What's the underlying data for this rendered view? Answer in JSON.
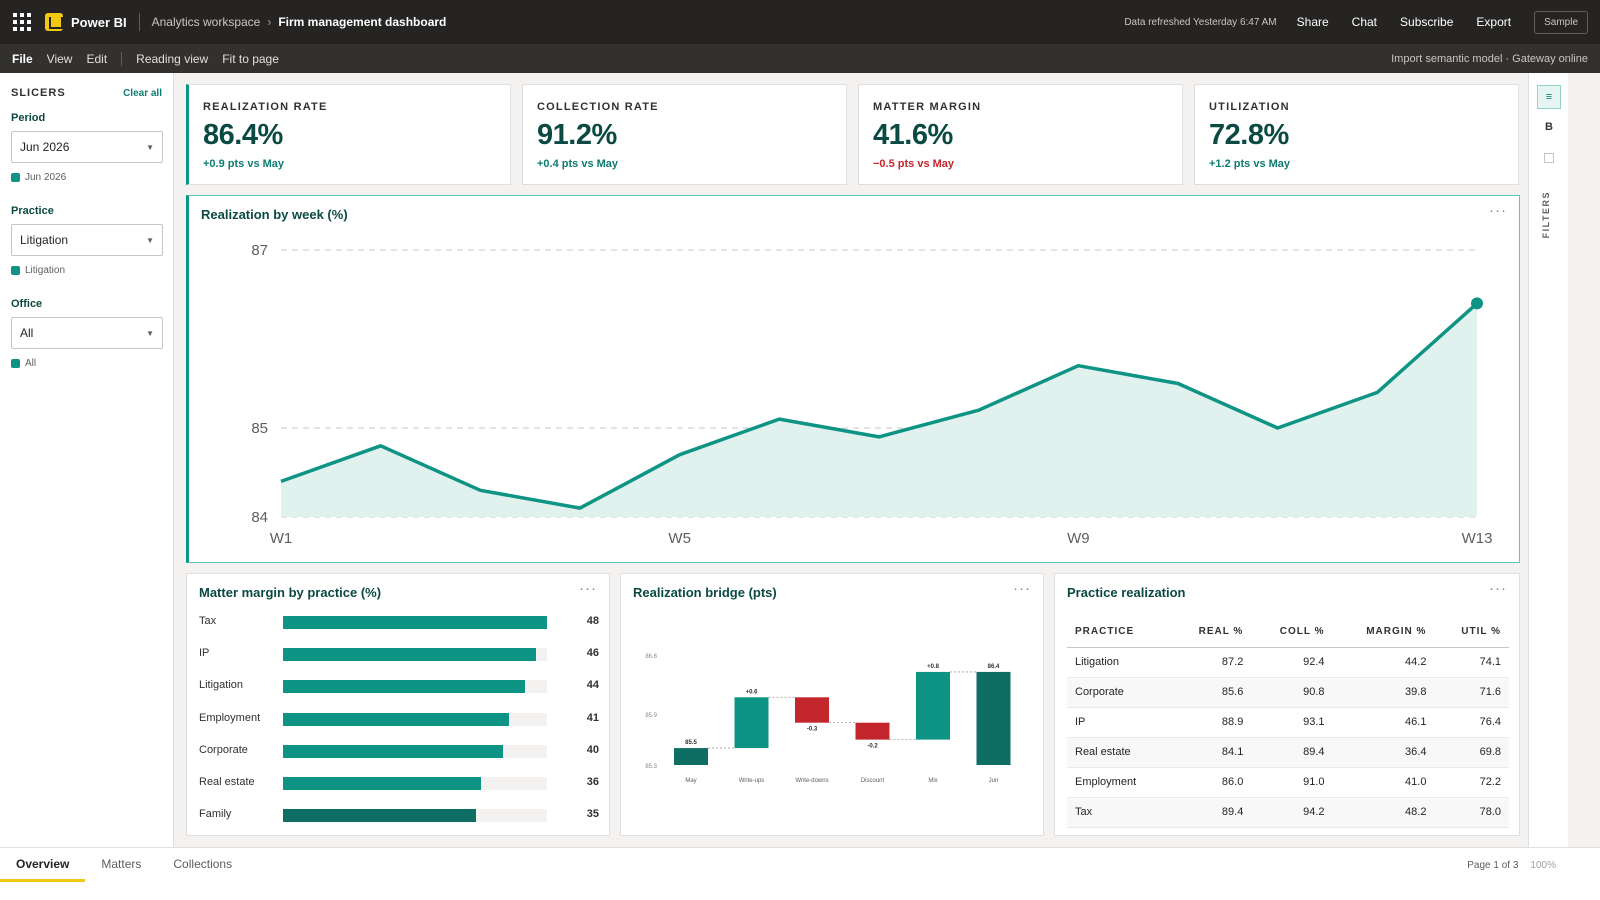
{
  "topbar": {
    "app_name": "Power BI",
    "workspace": "Analytics workspace",
    "separator": "›",
    "report": "Firm management dashboard",
    "refresh": "Data refreshed Yesterday 6:47 AM",
    "share": "Share",
    "chat": "Chat",
    "subscribe": "Subscribe",
    "export": "Export",
    "sample": "Sample"
  },
  "menubar": {
    "file": "File",
    "view": "View",
    "edit": "Edit",
    "reading_view": "Reading view",
    "fit_to_page": "Fit to page",
    "status": "Import semantic model · Gateway online"
  },
  "slicers": {
    "title": "SLICERS",
    "clear_all": "Clear all",
    "period": {
      "label": "Period",
      "value": "Jun 2026",
      "chip": "Jun 2026"
    },
    "practice": {
      "label": "Practice",
      "value": "Litigation",
      "chip": "Litigation"
    },
    "office": {
      "label": "Office",
      "value": "All",
      "chip": "All"
    }
  },
  "rail": {
    "b_label": "B",
    "filters_label": "FILTERS"
  },
  "kpis": [
    {
      "title": "REALIZATION RATE",
      "value": "86.4%",
      "delta": "+0.9 pts vs May"
    },
    {
      "title": "COLLECTION RATE",
      "value": "91.2%",
      "delta": "+0.4 pts vs May"
    },
    {
      "title": "MATTER MARGIN",
      "value": "41.6%",
      "delta": "−0.5 pts vs May"
    },
    {
      "title": "UTILIZATION",
      "value": "72.8%",
      "delta": "+1.2 pts vs May"
    }
  ],
  "visuals": {
    "main_title": "Realization by week (%)",
    "bar_title": "Matter margin by practice (%)",
    "bridge_title": "Realization bridge (pts)",
    "table_title": "Practice realization",
    "more": "···"
  },
  "chart_data": [
    {
      "type": "area",
      "title": "Realization by week (%)",
      "x": [
        "W1",
        "W2",
        "W3",
        "W4",
        "W5",
        "W6",
        "W7",
        "W8",
        "W9",
        "W10",
        "W11",
        "W12",
        "W13"
      ],
      "x_tick_labels": [
        "W1",
        "W5",
        "W9",
        "W13"
      ],
      "values": [
        84.4,
        84.8,
        84.3,
        84.1,
        84.7,
        85.1,
        84.9,
        85.2,
        85.7,
        85.5,
        85.0,
        85.4,
        86.4
      ],
      "y_ticks": [
        "84",
        "85",
        "87"
      ],
      "ylim": [
        84,
        87
      ],
      "grid": true,
      "colors": {
        "line": "#0e9485",
        "fill": "#e1f1ee"
      }
    },
    {
      "type": "bar",
      "orientation": "horizontal",
      "title": "Matter margin by practice (%)",
      "categories": [
        "Tax",
        "IP",
        "Litigation",
        "Employment",
        "Corporate",
        "Real estate",
        "Family"
      ],
      "values": [
        48,
        46,
        44,
        41,
        40,
        36,
        35
      ],
      "xlim": [
        0,
        48
      ]
    },
    {
      "type": "bar",
      "subtype": "waterfall",
      "title": "Realization bridge (pts)",
      "categories": [
        "May",
        "Write-ups",
        "Write-downs",
        "Discount",
        "Mix",
        "Jun"
      ],
      "values": [
        85.5,
        0.6,
        -0.3,
        -0.2,
        0.8,
        86.4
      ],
      "data_labels": [
        "85.5",
        "+0.6",
        "-0.3",
        "-0.2",
        "+0.8",
        "86.4"
      ],
      "y_ticks": [
        "85.3",
        "85.9",
        "86.6"
      ],
      "ylim": [
        85.3,
        86.6
      ],
      "colors": {
        "total": "#0e6e64",
        "increase": "#0e9485",
        "decrease": "#c4262e"
      }
    },
    {
      "type": "table",
      "title": "Practice realization",
      "columns": [
        "PRACTICE",
        "REAL %",
        "COLL %",
        "MARGIN %",
        "UTIL %"
      ],
      "rows": [
        [
          "Litigation",
          "87.2",
          "92.4",
          "44.2",
          "74.1"
        ],
        [
          "Corporate",
          "85.6",
          "90.8",
          "39.8",
          "71.6"
        ],
        [
          "IP",
          "88.9",
          "93.1",
          "46.1",
          "76.4"
        ],
        [
          "Real estate",
          "84.1",
          "89.4",
          "36.4",
          "69.8"
        ],
        [
          "Employment",
          "86.0",
          "91.0",
          "41.0",
          "72.2"
        ],
        [
          "Tax",
          "89.4",
          "94.2",
          "48.2",
          "78.0"
        ]
      ]
    }
  ],
  "tabs": [
    "Overview",
    "Matters",
    "Collections"
  ],
  "footer": {
    "page": "Page 1 of 3",
    "zoom": "100%"
  },
  "colors": {
    "accent": "#0e9485",
    "dark_text": "#0b4a43",
    "negative": "#c4262e",
    "brand": "#f2c811"
  }
}
